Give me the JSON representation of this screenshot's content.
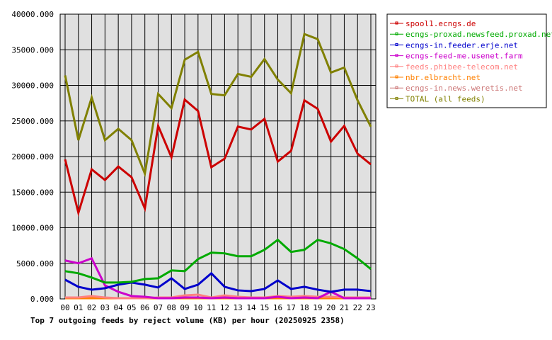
{
  "chart_data": {
    "type": "line",
    "title": "Top 7 outgoing feeds by reject volume (KB) per hour (20250925 2358)",
    "xlabel": "",
    "ylabel": "",
    "categories": [
      "00",
      "01",
      "02",
      "03",
      "04",
      "05",
      "06",
      "07",
      "08",
      "09",
      "10",
      "11",
      "12",
      "13",
      "14",
      "15",
      "16",
      "17",
      "18",
      "19",
      "20",
      "21",
      "22",
      "23"
    ],
    "ylim": [
      0,
      40000
    ],
    "yticks": [
      "0.000",
      "5000.000",
      "10000.000",
      "15000.000",
      "20000.000",
      "25000.000",
      "30000.000",
      "35000.000",
      "40000.000"
    ],
    "grid": true,
    "legend_position": "right",
    "series": [
      {
        "name": "spool1.ecngs.de",
        "color": "#cc0000",
        "values": [
          19600,
          12100,
          18200,
          16700,
          18600,
          17100,
          12700,
          24300,
          19900,
          28000,
          26400,
          18500,
          19700,
          24200,
          23800,
          25300,
          19300,
          20800,
          27900,
          26700,
          22100,
          24300,
          20400,
          18900
        ]
      },
      {
        "name": "ecngs-proxad.newsfeed.proxad.net",
        "color": "#00aa00",
        "values": [
          3900,
          3600,
          3000,
          2300,
          2300,
          2400,
          2800,
          2900,
          4000,
          3900,
          5600,
          6500,
          6400,
          6000,
          6000,
          6900,
          8300,
          6600,
          6900,
          8300,
          7800,
          7000,
          5700,
          4200
        ]
      },
      {
        "name": "ecngs-in.feeder.erje.net",
        "color": "#0000cc",
        "values": [
          2700,
          1700,
          1300,
          1500,
          2000,
          2300,
          2000,
          1600,
          2900,
          1400,
          2000,
          3600,
          1700,
          1200,
          1100,
          1400,
          2600,
          1400,
          1700,
          1300,
          1000,
          1300,
          1300,
          1100
        ]
      },
      {
        "name": "ecngs-feed-me.usenet.farm",
        "color": "#cc00cc",
        "values": [
          5400,
          5000,
          5700,
          1900,
          1000,
          400,
          300,
          100,
          100,
          200,
          200,
          100,
          200,
          100,
          100,
          100,
          300,
          100,
          200,
          100,
          1000,
          100,
          100,
          100
        ]
      },
      {
        "name": "feeds.phibee-telecom.net",
        "color": "#ff8080",
        "values": [
          200,
          200,
          400,
          200,
          100,
          100,
          100,
          200,
          200,
          500,
          600,
          200,
          500,
          300,
          200,
          200,
          400,
          300,
          400,
          300,
          300,
          200,
          200,
          200
        ]
      },
      {
        "name": "nbr.elbracht.net",
        "color": "#ff8000",
        "values": [
          100,
          100,
          100,
          100,
          100,
          100,
          100,
          100,
          100,
          100,
          100,
          100,
          100,
          100,
          100,
          100,
          100,
          100,
          100,
          100,
          100,
          100,
          100,
          100
        ]
      },
      {
        "name": "ecngs-in.news.weretis.net",
        "color": "#cc7777",
        "values": [
          100,
          100,
          100,
          100,
          100,
          100,
          100,
          100,
          100,
          100,
          100,
          100,
          100,
          100,
          100,
          100,
          100,
          100,
          100,
          100,
          100,
          100,
          100,
          100
        ]
      },
      {
        "name": "TOTAL (all feeds)",
        "color": "#808000",
        "values": [
          31400,
          22300,
          28300,
          22300,
          23900,
          22300,
          17600,
          28800,
          26800,
          33600,
          34700,
          28800,
          28600,
          31600,
          31200,
          33700,
          30800,
          28900,
          37200,
          36500,
          31800,
          32500,
          27900,
          24200
        ]
      }
    ]
  }
}
